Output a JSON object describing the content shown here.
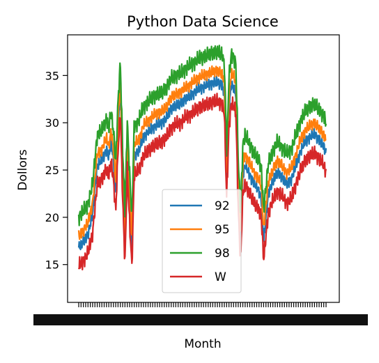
{
  "chart_data": {
    "type": "line",
    "title": "Python Data Science",
    "xlabel": "Month",
    "ylabel": "Dollors",
    "ylim": [
      11.0,
      39.3
    ],
    "yticks": [
      15,
      20,
      25,
      30,
      35
    ],
    "grid": false,
    "legend_position": "lower-center",
    "series": [
      {
        "name": "92",
        "color": "#1f77b4"
      },
      {
        "name": "95",
        "color": "#ff7f0e"
      },
      {
        "name": "98",
        "color": "#2ca02c"
      },
      {
        "name": "W",
        "color": "#d62728"
      }
    ],
    "base_curve": [
      [
        0,
        16.8
      ],
      [
        2,
        17.4
      ],
      [
        4,
        18.2
      ],
      [
        6,
        20.3
      ],
      [
        8,
        25.5
      ],
      [
        10,
        26.0
      ],
      [
        12,
        27.2
      ],
      [
        13,
        26.3
      ],
      [
        14,
        28.0
      ],
      [
        15,
        26.0
      ],
      [
        16,
        22.6
      ],
      [
        17,
        29.0
      ],
      [
        18,
        33.2
      ],
      [
        19,
        24.0
      ],
      [
        20,
        17.2
      ],
      [
        21,
        27.0
      ],
      [
        22,
        21.5
      ],
      [
        23,
        16.8
      ],
      [
        24,
        26.5
      ],
      [
        26,
        27.0
      ],
      [
        28,
        28.5
      ],
      [
        30,
        29.0
      ],
      [
        32,
        29.5
      ],
      [
        34,
        29.8
      ],
      [
        36,
        30.0
      ],
      [
        38,
        30.5
      ],
      [
        40,
        31.5
      ],
      [
        42,
        31.8
      ],
      [
        44,
        32.0
      ],
      [
        46,
        32.5
      ],
      [
        48,
        32.8
      ],
      [
        50,
        33.2
      ],
      [
        52,
        33.6
      ],
      [
        54,
        33.8
      ],
      [
        56,
        34.0
      ],
      [
        58,
        34.2
      ],
      [
        60,
        34.3
      ],
      [
        62,
        34.0
      ],
      [
        63,
        33.0
      ],
      [
        64,
        24.0
      ],
      [
        65,
        31.5
      ],
      [
        66,
        34.0
      ],
      [
        67,
        33.8
      ],
      [
        68,
        33.0
      ],
      [
        69,
        23.0
      ],
      [
        70,
        17.2
      ],
      [
        71,
        24.5
      ],
      [
        72,
        25.5
      ],
      [
        74,
        24.5
      ],
      [
        76,
        23.5
      ],
      [
        78,
        22.8
      ],
      [
        79,
        22.0
      ],
      [
        80,
        17.5
      ],
      [
        81,
        20.0
      ],
      [
        82,
        22.5
      ],
      [
        84,
        23.8
      ],
      [
        86,
        24.8
      ],
      [
        88,
        24.2
      ],
      [
        90,
        23.5
      ],
      [
        92,
        24.0
      ],
      [
        94,
        25.5
      ],
      [
        96,
        27.0
      ],
      [
        98,
        28.0
      ],
      [
        100,
        28.5
      ],
      [
        102,
        28.8
      ],
      [
        104,
        28.2
      ],
      [
        106,
        27.5
      ],
      [
        107,
        26.8
      ]
    ],
    "series_offsets": [
      0.0,
      1.2,
      3.2,
      -2.0
    ],
    "jitter_amplitude": [
      0.7,
      0.7,
      0.95,
      0.9
    ],
    "x_count": 108
  }
}
